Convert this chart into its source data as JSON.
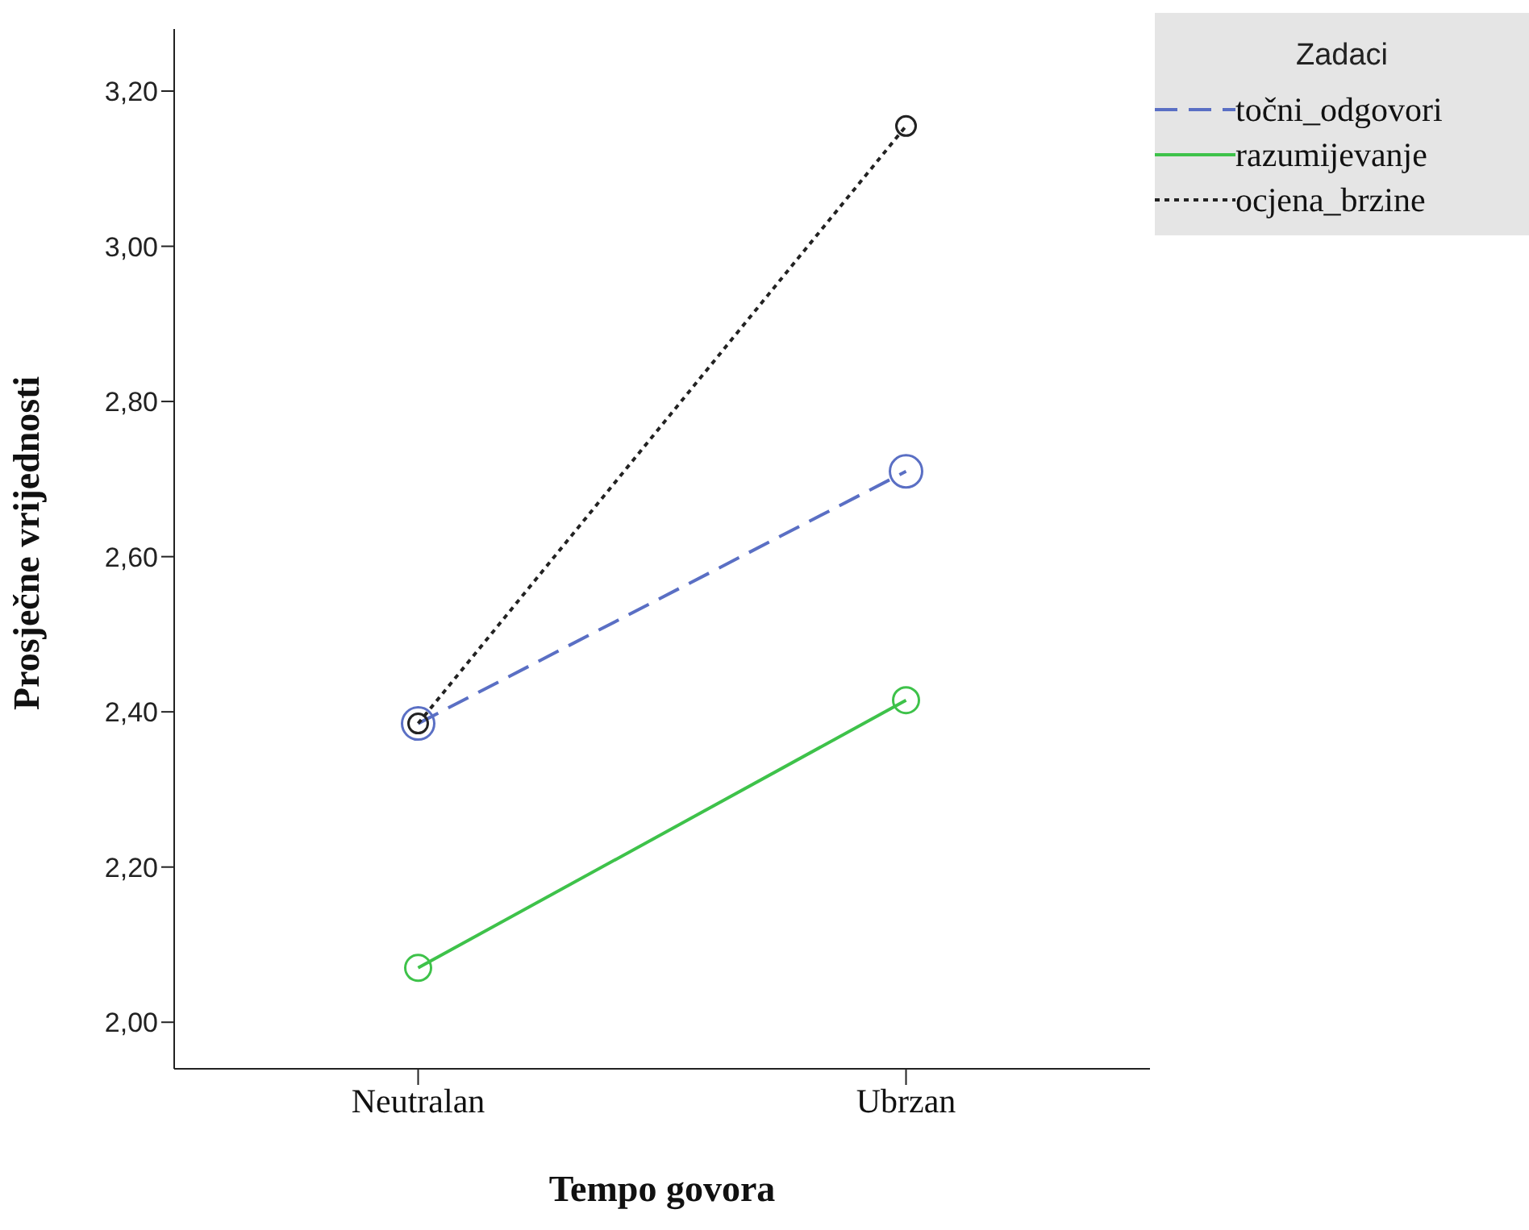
{
  "chart_data": {
    "type": "line",
    "xlabel": "Tempo govora",
    "ylabel": "Prosječne vrijednosti",
    "legend_title": "Zadaci",
    "categories": [
      "Neutralan",
      "Ubrzan"
    ],
    "series": [
      {
        "name": "točni_odgovori",
        "color": "#5a6fc4",
        "values": [
          2.385,
          2.71
        ],
        "line_style": "dashed"
      },
      {
        "name": "razumijevanje",
        "color": "#3ec24a",
        "values": [
          2.07,
          2.415
        ],
        "line_style": "solid"
      },
      {
        "name": "ocjena_brzine",
        "color": "#222222",
        "values": [
          2.385,
          3.155
        ],
        "line_style": "dotted"
      }
    ],
    "ylim": [
      1.94,
      3.28
    ],
    "yticks": [
      {
        "value": 2.0,
        "label": "2,00"
      },
      {
        "value": 2.2,
        "label": "2,20"
      },
      {
        "value": 2.4,
        "label": "2,40"
      },
      {
        "value": 2.6,
        "label": "2,60"
      },
      {
        "value": 2.8,
        "label": "2,80"
      },
      {
        "value": 3.0,
        "label": "3,00"
      },
      {
        "value": 3.2,
        "label": "3,20"
      }
    ],
    "grid": false,
    "legend": "top right",
    "marker": "circle"
  }
}
